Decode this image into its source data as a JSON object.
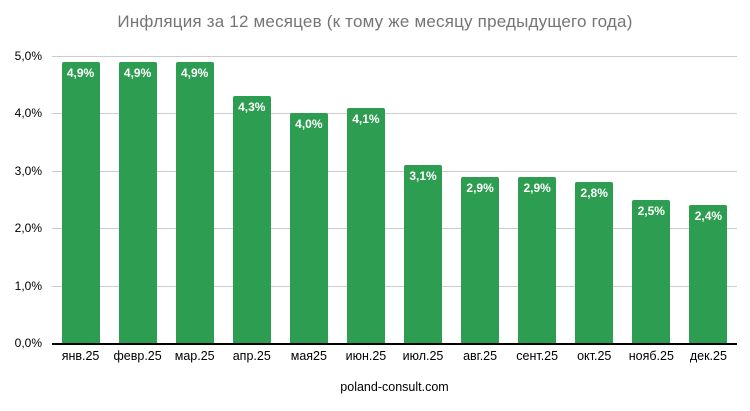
{
  "title": "Инфляция за 12 месяцев (к тому же месяцу предыдущего года)",
  "footer": {
    "text": "poland-consult.com"
  },
  "colors": {
    "bar": "#2d9d51",
    "bar_label": "#ffffff",
    "title_text": "#757575",
    "axis_text": "#000000",
    "gridline": "#cccccc",
    "baseline": "#000000",
    "background": "#ffffff"
  },
  "chart_data": {
    "type": "bar",
    "title": "Инфляция за 12 месяцев (к тому же месяцу предыдущего года)",
    "categories": [
      "янв.25",
      "февр.25",
      "мар.25",
      "апр.25",
      "мая25",
      "июн.25",
      "июл.25",
      "авг.25",
      "сент.25",
      "окт.25",
      "нояб.25",
      "дек.25"
    ],
    "values": [
      4.9,
      4.9,
      4.9,
      4.3,
      4.0,
      4.1,
      3.1,
      2.9,
      2.9,
      2.8,
      2.5,
      2.4
    ],
    "value_labels": [
      "4,9%",
      "4,9%",
      "4,9%",
      "4,3%",
      "4,0%",
      "4,1%",
      "3,1%",
      "2,9%",
      "2,9%",
      "2,8%",
      "2,5%",
      "2,4%"
    ],
    "xlabel": "",
    "ylabel": "",
    "y_ticks": [
      {
        "label": "0,0%",
        "value": 0
      },
      {
        "label": "1,0%",
        "value": 1
      },
      {
        "label": "2,0%",
        "value": 2
      },
      {
        "label": "3,0%",
        "value": 3
      },
      {
        "label": "4,0%",
        "value": 4
      },
      {
        "label": "5,0%",
        "value": 5
      }
    ],
    "ylim": [
      0,
      5
    ],
    "grid": "horizontal",
    "legend": "none",
    "annotation": "poland-consult.com"
  }
}
